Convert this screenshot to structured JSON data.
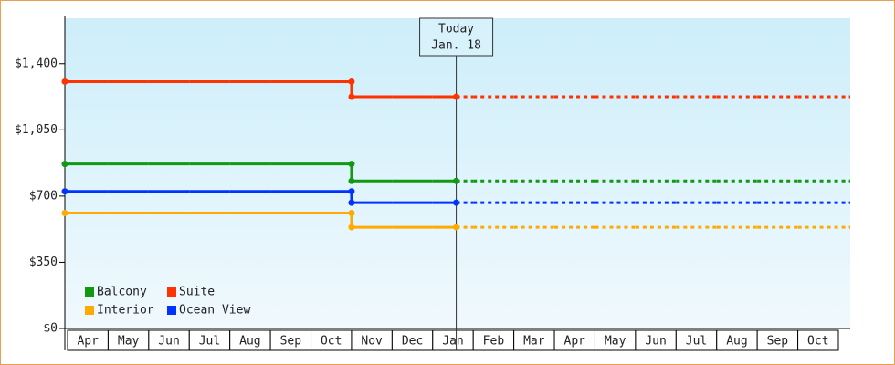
{
  "chart_data": {
    "type": "step-line",
    "categories": [
      "Apr",
      "May",
      "Jun",
      "Jul",
      "Aug",
      "Sep",
      "Oct",
      "Nov",
      "Dec",
      "Jan",
      "Feb",
      "Mar",
      "Apr",
      "May",
      "Jun",
      "Jul",
      "Aug",
      "Sep",
      "Oct"
    ],
    "series": [
      {
        "name": "Balcony",
        "color": "#119911",
        "values": [
          870,
          870,
          870,
          870,
          870,
          870,
          870,
          780,
          780,
          780,
          780,
          780,
          780,
          780,
          780,
          780,
          780,
          780,
          780
        ]
      },
      {
        "name": "Suite",
        "color": "#ff3300",
        "values": [
          1305,
          1305,
          1305,
          1305,
          1305,
          1305,
          1305,
          1225,
          1225,
          1225,
          1225,
          1225,
          1225,
          1225,
          1225,
          1225,
          1225,
          1225,
          1225
        ]
      },
      {
        "name": "Interior",
        "color": "#ffaa00",
        "values": [
          610,
          610,
          610,
          610,
          610,
          610,
          610,
          535,
          535,
          535,
          535,
          535,
          535,
          535,
          535,
          535,
          535,
          535,
          535
        ]
      },
      {
        "name": "Ocean View",
        "color": "#0033ff",
        "values": [
          725,
          725,
          725,
          725,
          725,
          725,
          725,
          665,
          665,
          665,
          665,
          665,
          665,
          665,
          665,
          665,
          665,
          665,
          665
        ]
      }
    ],
    "ylim": [
      0,
      1640
    ],
    "yticks": [
      {
        "value": 0,
        "label": "$0"
      },
      {
        "value": 350,
        "label": "$350"
      },
      {
        "value": 700,
        "label": "$700"
      },
      {
        "value": 1050,
        "label": "$1,050"
      },
      {
        "value": 1400,
        "label": "$1,400"
      }
    ],
    "today": {
      "label": "Today",
      "date": "Jan. 18",
      "category": "Jan",
      "day": 18
    },
    "legend": "lower left"
  }
}
